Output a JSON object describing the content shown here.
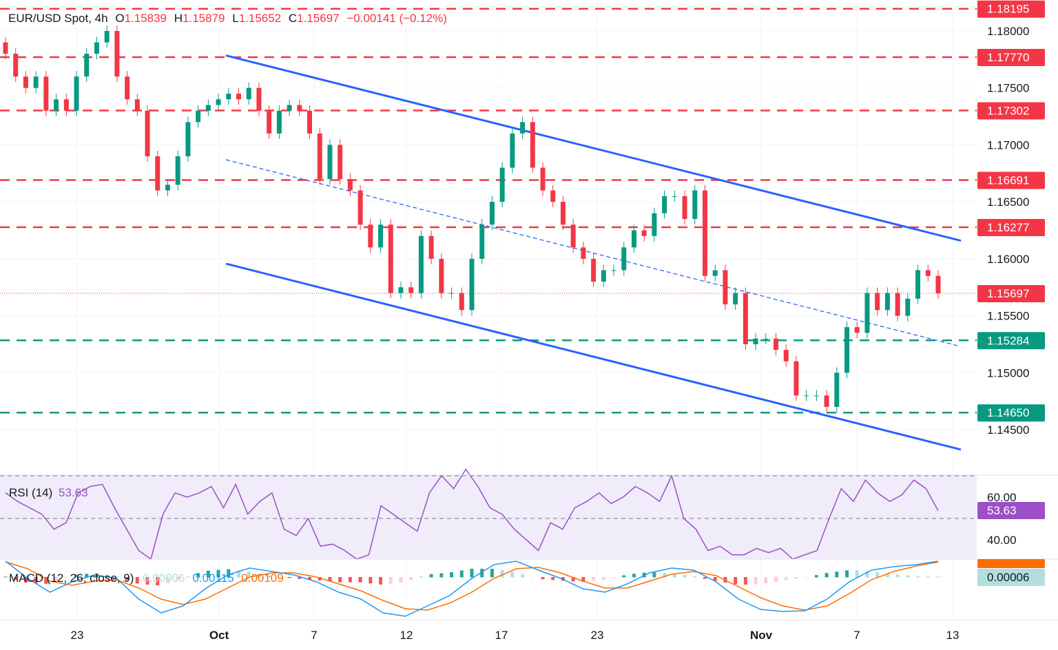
{
  "header": {
    "symbol": "EUR/USD Spot",
    "sep": ",",
    "interval": "4h",
    "o_label": "O",
    "o_value": "1.15839",
    "h_label": "H",
    "h_value": "1.15879",
    "l_label": "L",
    "l_value": "1.15652",
    "c_label": "C",
    "c_value": "1.15697",
    "change": "−0.00141 (−0.12%)"
  },
  "colors": {
    "up": "#089981",
    "down": "#f23645",
    "channel": "#2962ff",
    "rsi": "#9c4fc7",
    "rsi_bg": "#f0ecf9",
    "macd": "#2196f3",
    "signal": "#ff6d00",
    "hist_up": "#26a69a",
    "hist_up_light": "#b2dfdb",
    "hist_down": "#ff5252",
    "hist_down_light": "#ffcdd2"
  },
  "chart_data": {
    "type": "candlestick",
    "price_axis": {
      "ylim": [
        1.1395,
        1.1827
      ],
      "ticks": [
        "1.18000",
        "1.17500",
        "1.17000",
        "1.16500",
        "1.16000",
        "1.15500",
        "1.15000",
        "1.14500"
      ]
    },
    "x_ticks": [
      "23",
      "Oct",
      "7",
      "12",
      "17",
      "23",
      "Nov",
      "7",
      "13"
    ],
    "closes": [
      1.178,
      1.176,
      1.175,
      1.176,
      1.173,
      1.174,
      1.173,
      1.176,
      1.178,
      1.179,
      1.18,
      1.176,
      1.174,
      1.173,
      1.169,
      1.166,
      1.1665,
      1.169,
      1.172,
      1.173,
      1.1735,
      1.174,
      1.1745,
      1.174,
      1.175,
      1.173,
      1.171,
      1.173,
      1.1735,
      1.173,
      1.171,
      1.167,
      1.17,
      1.167,
      1.166,
      1.163,
      1.161,
      1.163,
      1.157,
      1.1575,
      1.157,
      1.162,
      1.16,
      1.157,
      1.157,
      1.1555,
      1.16,
      1.163,
      1.165,
      1.168,
      1.171,
      1.172,
      1.168,
      1.166,
      1.165,
      1.163,
      1.161,
      1.16,
      1.158,
      1.159,
      1.159,
      1.161,
      1.1625,
      1.162,
      1.164,
      1.1655,
      1.1655,
      1.1635,
      1.166,
      1.1585,
      1.159,
      1.156,
      1.157,
      1.1525,
      1.153,
      1.153,
      1.152,
      1.151,
      1.148,
      1.148,
      1.148,
      1.147,
      1.15,
      1.154,
      1.1535,
      1.157,
      1.1555,
      1.157,
      1.155,
      1.1565,
      1.159,
      1.1585,
      1.15697
    ],
    "levels": [
      {
        "value": "1.18195",
        "kind": "resistance"
      },
      {
        "value": "1.17770",
        "kind": "resistance"
      },
      {
        "value": "1.17302",
        "kind": "resistance"
      },
      {
        "value": "1.16691",
        "kind": "resistance"
      },
      {
        "value": "1.16277",
        "kind": "resistance"
      },
      {
        "value": "1.15284",
        "kind": "support"
      },
      {
        "value": "1.14650",
        "kind": "support"
      }
    ],
    "last_price": "1.15697",
    "channel": {
      "upper": [
        1.17785,
        1.16159
      ],
      "lower": [
        1.15957,
        1.14325
      ],
      "middle": [
        1.1687,
        1.15238
      ]
    },
    "rsi": {
      "label": "RSI (14)",
      "value": "53.63",
      "ylim": [
        30.6,
        70.3
      ],
      "ticks": [
        "60.00",
        "40.00"
      ],
      "bands": [
        70,
        50
      ],
      "values": [
        62,
        58,
        55,
        52,
        45,
        48,
        62,
        65,
        66,
        55,
        45,
        35,
        30,
        52,
        62,
        60,
        62,
        65,
        55,
        66,
        52,
        58,
        62,
        45,
        42,
        50,
        37,
        38,
        35,
        30,
        33,
        56,
        52,
        48,
        44,
        62,
        70,
        64,
        73,
        65,
        55,
        52,
        45,
        40,
        35,
        48,
        45,
        55,
        58,
        62,
        57,
        60,
        65,
        62,
        58,
        70,
        50,
        45,
        35,
        37,
        33,
        33,
        36,
        34,
        36,
        30,
        33,
        35,
        50,
        64,
        58,
        68,
        62,
        58,
        61,
        68,
        64,
        53.63
      ]
    },
    "macd": {
      "label": "MACD (12, 26, close, 9)",
      "hist_value": "0.00006",
      "macd_value": "0.00115",
      "signal_value": "0.00109",
      "macd": [
        0.00115,
        -0.0001,
        -0.0011,
        -0.00035,
        0.00015,
        -0.0001,
        -0.0016,
        -0.0026,
        -0.0021,
        -0.00085,
        0.00015,
        0.00065,
        0.0004,
        0.00015,
        -0.00035,
        -0.0011,
        -0.0016,
        -0.0026,
        -0.00285,
        -0.0021,
        -0.00135,
        -0.0001,
        0.0009,
        0.00115,
        0.0005,
        -0.0001,
        -0.00085,
        -0.0011,
        -0.0005,
        0.0003,
        0.00065,
        0.0005,
        -0.00035,
        -0.0016,
        -0.00235,
        -0.0025,
        -0.00245,
        -0.0016,
        -0.00035,
        0.0005,
        0.00075,
        0.0009,
        0.00115
      ],
      "signal": [
        0.0011,
        0.0006,
        -0.0003,
        -0.0006,
        -0.0003,
        -0.0002,
        -0.0008,
        -0.0016,
        -0.002,
        -0.0016,
        -0.0008,
        0.0,
        0.0003,
        0.0003,
        0.0,
        -0.0005,
        -0.001,
        -0.0017,
        -0.0023,
        -0.0024,
        -0.0019,
        -0.0011,
        -0.0001,
        0.0006,
        0.0007,
        0.0003,
        -0.0003,
        -0.0008,
        -0.0008,
        -0.0003,
        0.0002,
        0.0004,
        0.0001,
        -0.0007,
        -0.0015,
        -0.0021,
        -0.0024,
        -0.0021,
        -0.0012,
        -0.0002,
        0.0004,
        0.0008,
        0.00109
      ]
    }
  }
}
